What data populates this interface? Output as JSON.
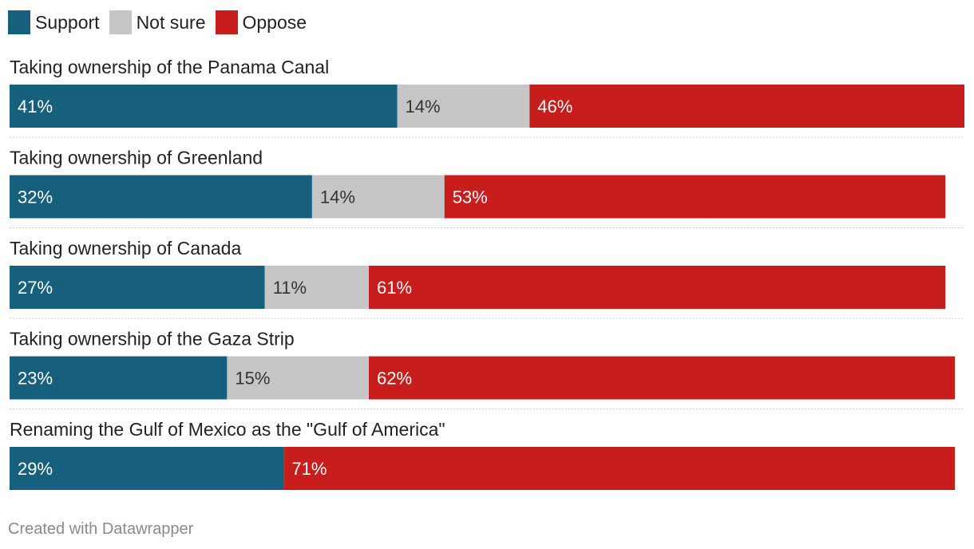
{
  "chart_data": {
    "type": "bar",
    "orientation": "horizontal",
    "stacked": true,
    "title": "",
    "legend": [
      {
        "name": "Support",
        "color": "#17607d"
      },
      {
        "name": "Not sure",
        "color": "#c6c6c6"
      },
      {
        "name": "Oppose",
        "color": "#c71e1d"
      }
    ],
    "categories": [
      "Taking ownership of the Panama Canal",
      "Taking ownership of Greenland",
      "Taking ownership of Canada",
      "Taking ownership of the Gaza Strip",
      "Renaming the Gulf of Mexico as the \"Gulf of America\""
    ],
    "series": [
      {
        "name": "Support",
        "values": [
          41,
          32,
          27,
          23,
          29
        ]
      },
      {
        "name": "Not sure",
        "values": [
          14,
          14,
          11,
          15,
          0
        ]
      },
      {
        "name": "Oppose",
        "values": [
          46,
          53,
          61,
          62,
          71
        ]
      }
    ],
    "value_suffix": "%",
    "xlim": [
      0,
      101
    ],
    "label_colors": {
      "Support": "#ffffff",
      "Not sure": "#333333",
      "Oppose": "#ffffff"
    },
    "label_style": "inside-left"
  },
  "footer": {
    "credit": "Created with Datawrapper"
  }
}
